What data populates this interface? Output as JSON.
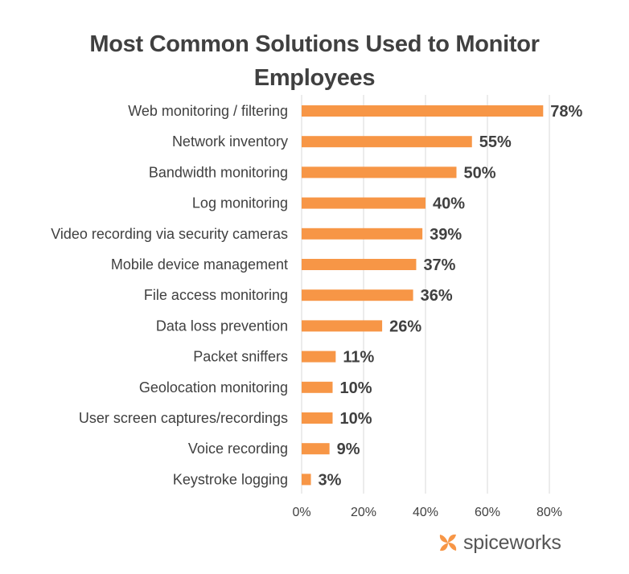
{
  "chart_data": {
    "type": "bar",
    "orientation": "horizontal",
    "title": "Most Common Solutions Used to Monitor Employees",
    "title_lines": [
      "Most Common Solutions Used to Monitor",
      "Employees"
    ],
    "categories": [
      "Web monitoring / filtering",
      "Network inventory",
      "Bandwidth monitoring",
      "Log monitoring",
      "Video recording via security cameras",
      "Mobile device management",
      "File access monitoring",
      "Data loss prevention",
      "Packet sniffers",
      "Geolocation monitoring",
      "User screen captures/recordings",
      "Voice recording",
      "Keystroke logging"
    ],
    "values": [
      78,
      55,
      50,
      40,
      39,
      37,
      36,
      26,
      11,
      10,
      10,
      9,
      3
    ],
    "value_labels": [
      "78%",
      "55%",
      "50%",
      "40%",
      "39%",
      "37%",
      "36%",
      "26%",
      "11%",
      "10%",
      "10%",
      "9%",
      "3%"
    ],
    "xlim": [
      0,
      80
    ],
    "xticks": [
      0,
      20,
      40,
      60,
      80
    ],
    "xtick_labels": [
      "0%",
      "20%",
      "40%",
      "60%",
      "80%"
    ],
    "xlabel": "",
    "ylabel": "",
    "grid": "vertical",
    "legend": "none",
    "bar_color": "#F79646",
    "grid_color": "#D9D9D9"
  },
  "branding": {
    "logo_text": "spiceworks",
    "logo_color": "#F79646"
  }
}
